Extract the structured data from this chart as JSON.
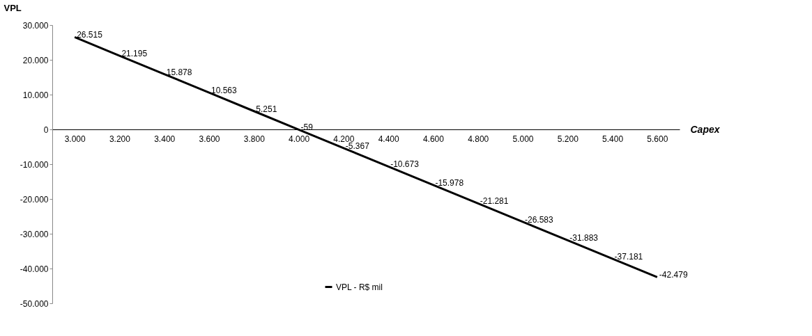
{
  "chart_data": {
    "type": "line",
    "ylabel": "VPL",
    "xlabel": "Capex",
    "categories": [
      "3.000",
      "3.200",
      "3.400",
      "3.600",
      "3.800",
      "4.000",
      "4.200",
      "4.400",
      "4.600",
      "4.800",
      "5.000",
      "5.200",
      "5.400",
      "5.600"
    ],
    "series": [
      {
        "name": "VPL - R$ mil",
        "color": "#000000",
        "values": [
          26515,
          21195,
          15878,
          10563,
          5251,
          -59,
          -5367,
          -10673,
          -15978,
          -21281,
          -26583,
          -31883,
          -37181,
          -42479
        ],
        "value_labels": [
          "26.515",
          "21.195",
          "15.878",
          "10.563",
          "5.251",
          "-59",
          "-5.367",
          "-10.673",
          "-15.978",
          "-21.281",
          "-26.583",
          "-31.883",
          "-37.181",
          "-42.479"
        ]
      }
    ],
    "ylim": [
      -50000,
      30000
    ],
    "yticks": [
      {
        "value": 30000,
        "label": "30.000"
      },
      {
        "value": 20000,
        "label": "20.000"
      },
      {
        "value": 10000,
        "label": "10.000"
      },
      {
        "value": 0,
        "label": "0"
      },
      {
        "value": -10000,
        "label": "-10.000"
      },
      {
        "value": -20000,
        "label": "-20.000"
      },
      {
        "value": -30000,
        "label": "-30.000"
      },
      {
        "value": -40000,
        "label": "-40.000"
      },
      {
        "value": -50000,
        "label": "-50.000"
      }
    ],
    "grid": false,
    "legend": "bottom",
    "marker": "none",
    "line_style": "solid"
  }
}
